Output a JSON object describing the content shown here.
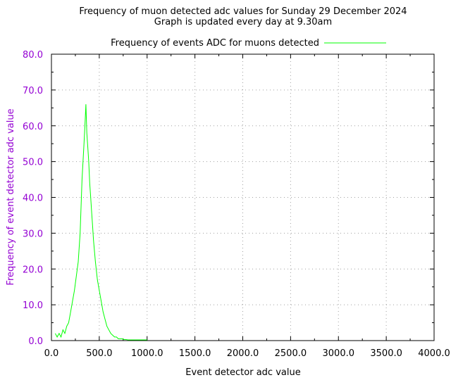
{
  "chart_data": {
    "type": "line",
    "title": "Frequency of muon detected adc values for Sunday 29 December 2024",
    "subtitle": "Graph is updated every day at 9.30am",
    "xlabel": "Event detector adc value",
    "ylabel": "Frequency of event detector adc value",
    "xlim": [
      0,
      4000
    ],
    "ylim": [
      0,
      80
    ],
    "x_ticks": [
      "0.0",
      "500.0",
      "1000.0",
      "1500.0",
      "2000.0",
      "2500.0",
      "3000.0",
      "3500.0",
      "4000.0"
    ],
    "y_ticks": [
      "0.0",
      "10.0",
      "20.0",
      "30.0",
      "40.0",
      "50.0",
      "60.0",
      "70.0",
      "80.0"
    ],
    "grid": true,
    "legend_position": "top",
    "series": [
      {
        "name": "Frequency of events ADC for muons detected",
        "color": "#00ff00",
        "x": [
          40,
          60,
          80,
          100,
          120,
          140,
          160,
          180,
          200,
          220,
          240,
          260,
          280,
          300,
          320,
          340,
          350,
          360,
          370,
          380,
          390,
          400,
          410,
          420,
          430,
          440,
          460,
          480,
          500,
          520,
          540,
          560,
          580,
          600,
          620,
          640,
          660,
          680,
          700,
          720,
          740,
          760,
          780,
          800,
          850,
          900,
          950,
          1000
        ],
        "y": [
          2,
          1,
          2,
          1,
          3,
          2,
          4,
          5,
          8,
          11,
          14,
          18,
          22,
          30,
          45,
          55,
          60,
          66,
          58,
          54,
          50,
          44,
          40,
          36,
          32,
          28,
          22,
          17,
          14,
          11,
          8,
          6,
          4,
          3,
          2,
          1.5,
          1,
          1,
          0.5,
          0.5,
          0.5,
          0.3,
          0.3,
          0.2,
          0.2,
          0.2,
          0.2,
          0.2
        ]
      }
    ]
  }
}
